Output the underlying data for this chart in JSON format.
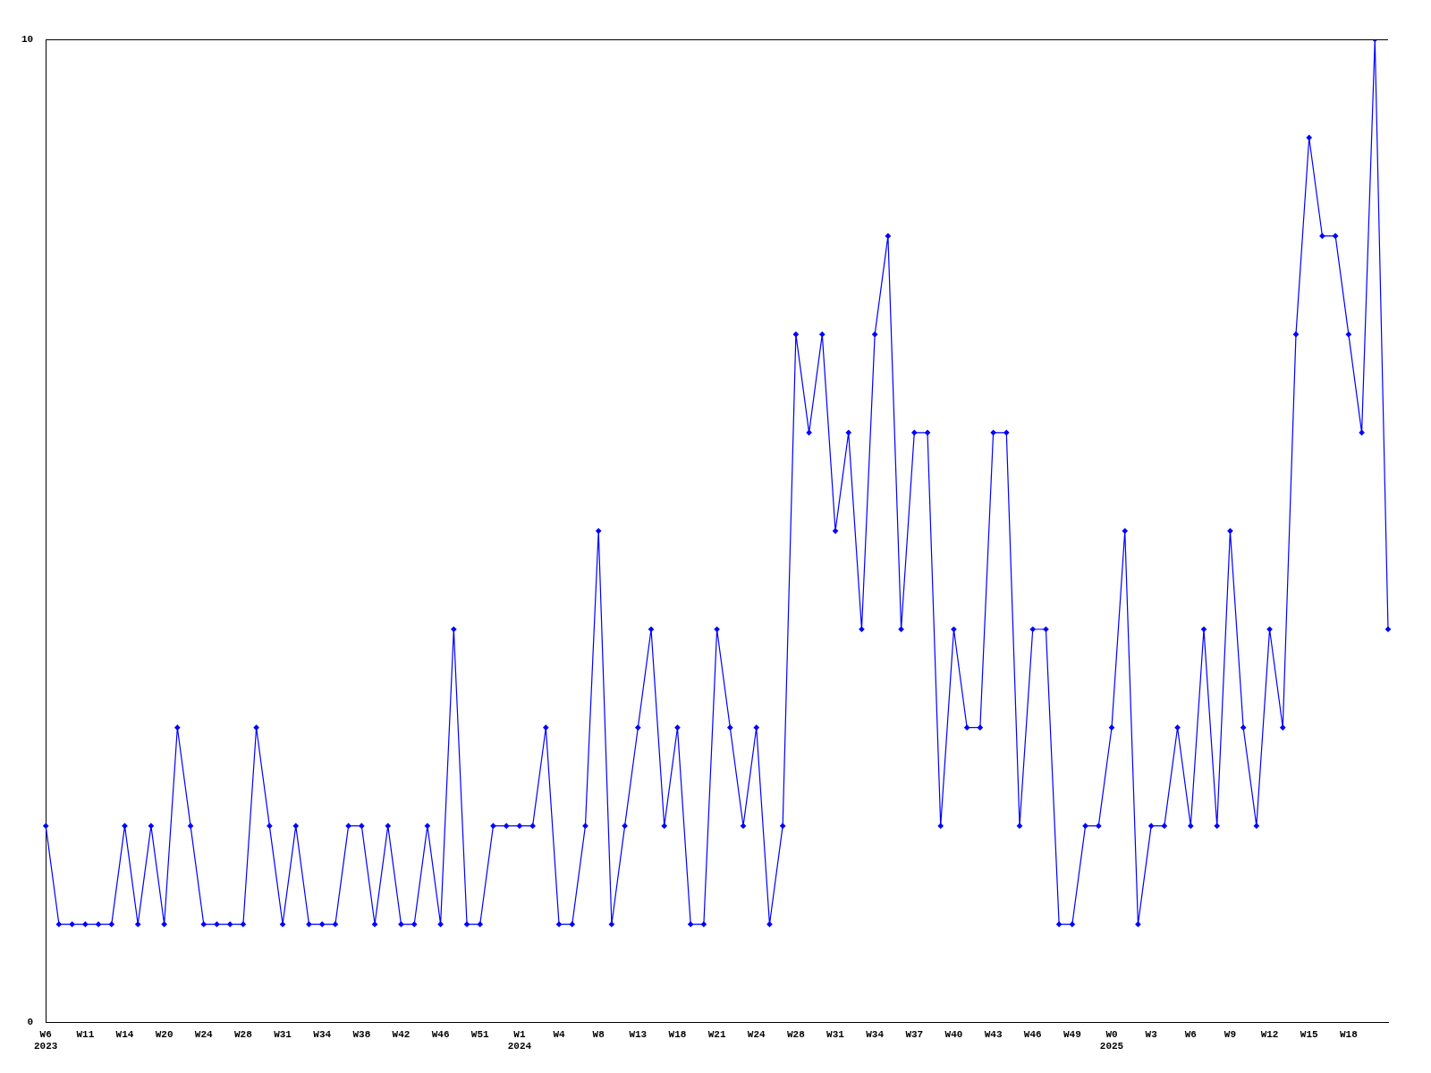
{
  "chart_data": {
    "type": "line",
    "categories": [
      "W6\n2023",
      null,
      null,
      "W11",
      null,
      null,
      "W14",
      null,
      null,
      "W20",
      null,
      null,
      "W24",
      null,
      null,
      "W28",
      null,
      null,
      "W31",
      null,
      null,
      "W34",
      null,
      null,
      "W38",
      null,
      null,
      "W42",
      null,
      null,
      "W46",
      null,
      null,
      "W51",
      null,
      null,
      "W1\n2024",
      null,
      null,
      "W4",
      null,
      null,
      "W8",
      null,
      null,
      "W13",
      null,
      null,
      "W18",
      null,
      null,
      "W21",
      null,
      null,
      "W24",
      null,
      null,
      "W28",
      null,
      null,
      "W31",
      null,
      null,
      "W34",
      null,
      null,
      "W37",
      null,
      null,
      "W40",
      null,
      null,
      "W43",
      null,
      null,
      "W46",
      null,
      null,
      "W49",
      null,
      null,
      "W0\n2025",
      null,
      null,
      "W3",
      null,
      null,
      "W6",
      null,
      null,
      "W9",
      null,
      null,
      "W12",
      null,
      null,
      "W15",
      null,
      null,
      "W18",
      null,
      null,
      null
    ],
    "series": [
      {
        "color": "#0000ff",
        "values": [
          2,
          1,
          1,
          1,
          1,
          1,
          2,
          1,
          2,
          1,
          3,
          2,
          1,
          1,
          1,
          1,
          3,
          2,
          1,
          2,
          1,
          1,
          1,
          2,
          2,
          1,
          2,
          1,
          1,
          2,
          1,
          4,
          1,
          1,
          2,
          2,
          2,
          2,
          3,
          1,
          1,
          2,
          5,
          1,
          2,
          3,
          4,
          2,
          3,
          1,
          1,
          4,
          3,
          2,
          3,
          1,
          2,
          7,
          6,
          7,
          5,
          6,
          4,
          7,
          8,
          4,
          6,
          6,
          2,
          4,
          3,
          3,
          6,
          6,
          2,
          4,
          4,
          1,
          1,
          2,
          2,
          3,
          5,
          1,
          2,
          2,
          3,
          2,
          4,
          2,
          5,
          3,
          2,
          4,
          3,
          7,
          9,
          8,
          8,
          7,
          6,
          10,
          4
        ]
      }
    ],
    "ylim": [
      0,
      10
    ],
    "yticks": [
      0,
      10
    ],
    "grid": false,
    "legend": false,
    "marker": "diamond",
    "line_style": "solid"
  }
}
